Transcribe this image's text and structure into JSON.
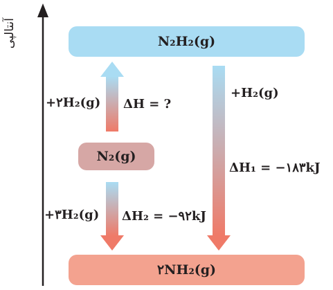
{
  "axis": {
    "label": "آنتالپی"
  },
  "boxes": {
    "top": "N₂H₂(g)",
    "middle": "N₂(g)",
    "bottom": "۲NH₂(g)"
  },
  "arrows": {
    "up_reagent": "+۲H₂(g)",
    "up_delta": "ΔH = ?",
    "down_left_reagent": "+۳H₂(g)",
    "down_left_delta": "ΔH₂ = −۹۲kJ",
    "down_right_reagent": "+H₂(g)",
    "down_right_delta": "ΔH₁ = −۱۸۳kJ"
  },
  "colors": {
    "top_box": "#a9dcf3",
    "middle_box": "#d6a7a5",
    "bottom_box": "#f3a28f",
    "arrow_blue": "#a9dcf3",
    "arrow_red": "#ef7a68"
  }
}
